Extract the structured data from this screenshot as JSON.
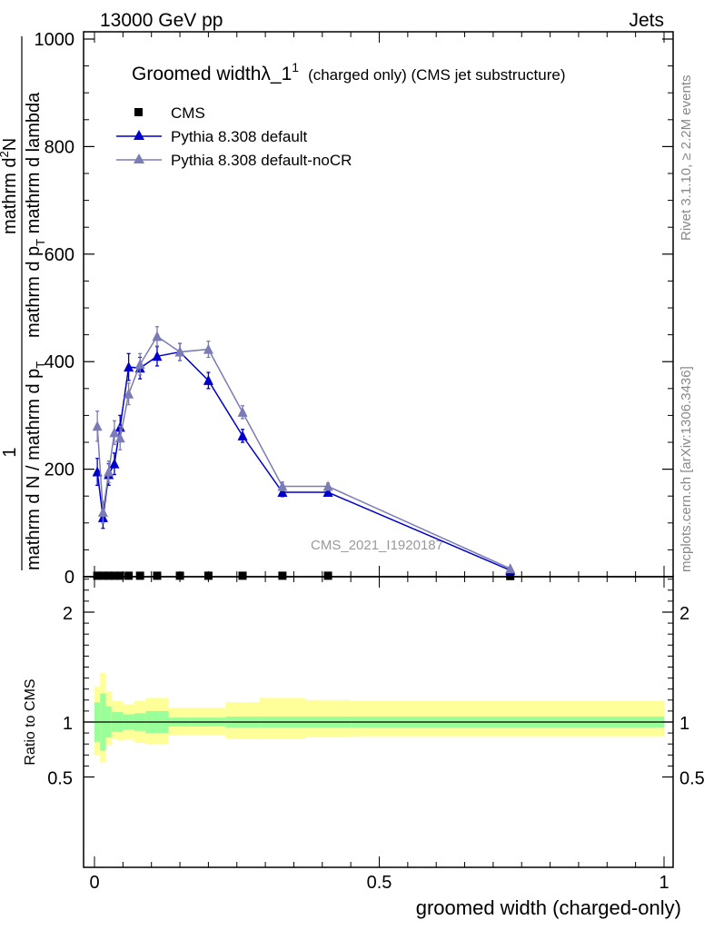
{
  "header": {
    "left": "13000 GeV pp",
    "right": "Jets"
  },
  "side_labels": {
    "rivet": "Rivet 3.1.10, ≥ 2.2M events",
    "mcplots": "mcplots.cern.ch [arXiv:1306.3436]"
  },
  "legend_title": {
    "main": "Groomed widthλ_1",
    "sup": "1",
    "rest": "(charged only) (CMS jet substructure)"
  },
  "watermark": "CMS_2021_I1920187",
  "chart_data": [
    {
      "type": "line",
      "xlabel": "groomed width (charged-only)",
      "ylabel_parts": {
        "num_frac": "1",
        "num_den": "mathrm d N / mathrm d p",
        "num_den_sub": "T",
        "den_top": "mathrm d",
        "den_top_sup": "2",
        "den_top_rest": "N",
        "den_bottom": "mathrm d p",
        "den_bottom_sub": "T",
        "den_bottom_rest": " mathrm d lambda"
      },
      "xlim": [
        0,
        1
      ],
      "ylim": [
        0,
        1000
      ],
      "y_ticks": [
        0,
        200,
        400,
        600,
        800,
        1000
      ],
      "x_ticks": [
        0,
        0.5,
        1
      ],
      "x_tick_labels": [
        "0",
        "0.5",
        "1"
      ],
      "series": [
        {
          "name": "CMS",
          "marker": "square",
          "color": "#000000",
          "x": [
            0.005,
            0.015,
            0.025,
            0.035,
            0.045,
            0.06,
            0.08,
            0.11,
            0.15,
            0.2,
            0.26,
            0.33,
            0.41,
            0.73
          ],
          "y": [
            1,
            1,
            1,
            1,
            1,
            1,
            1,
            1,
            1,
            1,
            1,
            1,
            1,
            0.3
          ]
        },
        {
          "name": "Pythia 8.308 default",
          "marker": "triangle",
          "color": "#0000cc",
          "x": [
            0.005,
            0.015,
            0.025,
            0.035,
            0.045,
            0.06,
            0.08,
            0.11,
            0.15,
            0.2,
            0.26,
            0.33,
            0.41,
            0.73
          ],
          "y": [
            195,
            110,
            190,
            210,
            278,
            390,
            388,
            410,
            418,
            365,
            262,
            157,
            157,
            12
          ],
          "err": [
            25,
            20,
            20,
            20,
            22,
            25,
            20,
            18,
            16,
            15,
            12,
            8,
            6,
            2
          ]
        },
        {
          "name": "Pythia 8.308 default-noCR",
          "marker": "triangle",
          "color": "#7b7bb5",
          "x": [
            0.005,
            0.015,
            0.025,
            0.035,
            0.045,
            0.06,
            0.08,
            0.11,
            0.15,
            0.2,
            0.26,
            0.33,
            0.41,
            0.73
          ],
          "y": [
            280,
            120,
            195,
            268,
            258,
            340,
            395,
            447,
            418,
            423,
            306,
            168,
            168,
            15
          ],
          "err": [
            28,
            20,
            20,
            22,
            22,
            20,
            20,
            18,
            16,
            15,
            12,
            8,
            6,
            2
          ]
        }
      ]
    },
    {
      "type": "area",
      "ylabel": "Ratio to CMS",
      "xlim": [
        0,
        1
      ],
      "ylim": [
        0.4,
        2.4
      ],
      "y_tick_labels": [
        "0.5",
        "1",
        "2"
      ],
      "y_ticks": [
        0.5,
        1,
        2
      ],
      "bins": [
        0,
        0.01,
        0.02,
        0.03,
        0.04,
        0.05,
        0.07,
        0.09,
        0.13,
        0.17,
        0.23,
        0.29,
        0.37,
        0.45,
        1.0
      ],
      "stat_lo": [
        0.82,
        0.74,
        0.86,
        0.91,
        0.91,
        0.93,
        0.92,
        0.9,
        0.96,
        0.96,
        0.95,
        0.95,
        0.95,
        0.95
      ],
      "stat_hi": [
        1.18,
        1.26,
        1.14,
        1.09,
        1.09,
        1.07,
        1.08,
        1.1,
        1.04,
        1.04,
        1.05,
        1.05,
        1.05,
        1.05
      ],
      "total_lo": [
        0.7,
        0.63,
        0.79,
        0.85,
        0.83,
        0.84,
        0.81,
        0.8,
        0.88,
        0.88,
        0.85,
        0.85,
        0.86,
        0.87
      ],
      "total_hi": [
        1.32,
        1.45,
        1.28,
        1.19,
        1.19,
        1.16,
        1.19,
        1.22,
        1.13,
        1.13,
        1.18,
        1.22,
        1.2,
        1.19
      ]
    }
  ]
}
